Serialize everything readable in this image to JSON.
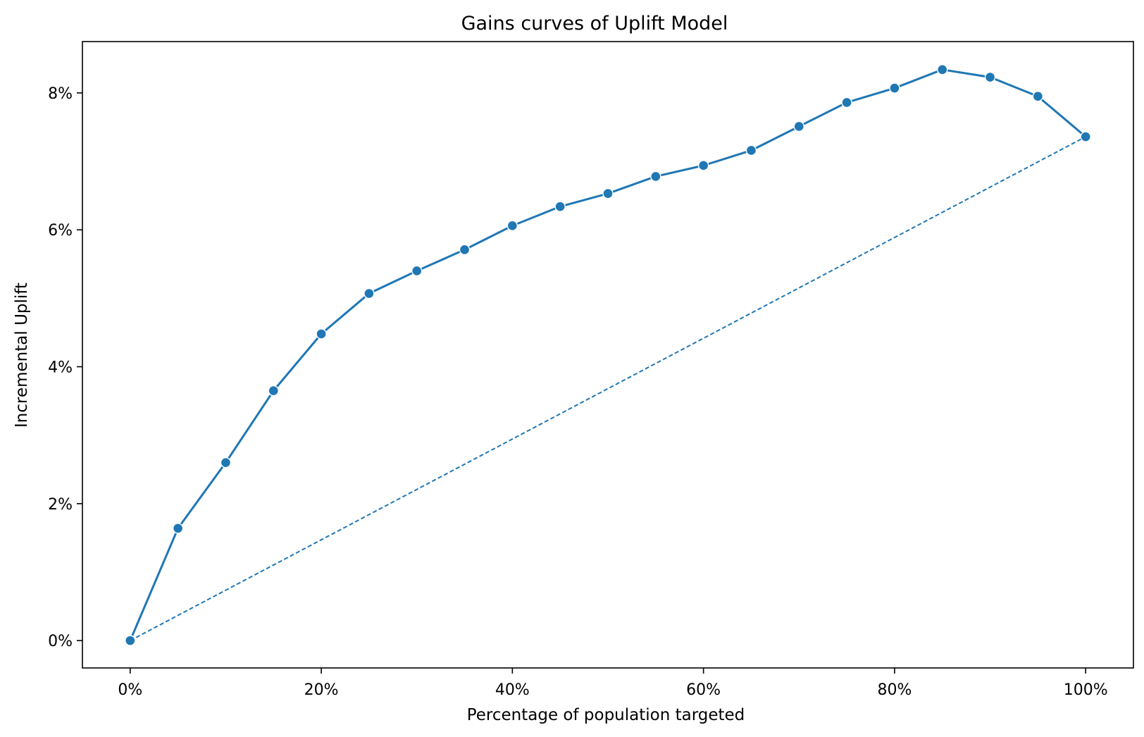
{
  "chart_data": {
    "type": "line",
    "title": "Gains curves of Uplift Model",
    "xlabel": "Percentage of population targeted",
    "ylabel": "Incremental Uplift",
    "xlim": [
      -5,
      105
    ],
    "ylim": [
      -0.4,
      8.75
    ],
    "x_ticks": [
      0,
      20,
      40,
      60,
      80,
      100
    ],
    "x_tick_labels": [
      "0%",
      "20%",
      "40%",
      "60%",
      "80%",
      "100%"
    ],
    "y_ticks": [
      0,
      2,
      4,
      6,
      8
    ],
    "y_tick_labels": [
      "0%",
      "2%",
      "4%",
      "6%",
      "8%"
    ],
    "grid": false,
    "series": [
      {
        "style": "solid-with-markers",
        "color": "#1f77b4",
        "x": [
          0,
          5,
          10,
          15,
          20,
          25,
          30,
          35,
          40,
          45,
          50,
          55,
          60,
          65,
          70,
          75,
          80,
          85,
          90,
          95,
          100
        ],
        "values": [
          0,
          1.64,
          2.6,
          3.65,
          4.48,
          5.07,
          5.4,
          5.71,
          6.06,
          6.34,
          6.53,
          6.78,
          6.94,
          7.16,
          7.51,
          7.86,
          8.07,
          8.34,
          8.23,
          7.95,
          7.36
        ]
      },
      {
        "style": "dashed",
        "color": "#1f77b4",
        "x": [
          0,
          100
        ],
        "values": [
          0,
          7.36
        ]
      }
    ]
  }
}
